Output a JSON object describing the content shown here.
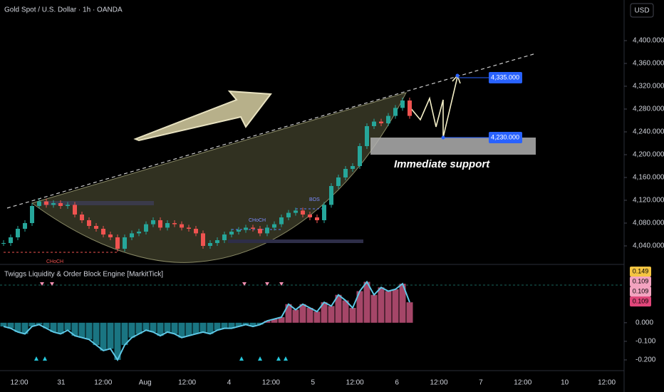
{
  "header": {
    "symbol": "Gold Spot / U.S. Dollar · 1h · OANDA",
    "currency": "USD"
  },
  "chart_data": [
    {
      "type": "candlestick",
      "values": [
        4045,
        4055,
        4070,
        4080,
        4110,
        4118,
        4112,
        4115,
        4110,
        4112,
        4095,
        4085,
        4075,
        4070,
        4060,
        4055,
        4035,
        4055,
        4062,
        4065,
        4078,
        4085,
        4072,
        4080,
        4078,
        4072,
        4070,
        4062,
        4040,
        4045,
        4050,
        4060,
        4065,
        4068,
        4072,
        4070,
        4062,
        4072,
        4078,
        4090,
        4098,
        4102,
        4095,
        4090,
        4085,
        4112,
        4145,
        4160,
        4175,
        4180,
        4215,
        4250,
        4258,
        4255,
        4268,
        4282,
        4295,
        4268
      ],
      "colors": {
        "up": "#26a69a",
        "down": "#ef5350"
      },
      "ylim": [
        4008.75,
        4471.25
      ],
      "yticks": [
        {
          "value": 4400,
          "label": "4,400.000"
        },
        {
          "value": 4360,
          "label": "4,360.000"
        },
        {
          "value": 4320,
          "label": "4,320.000"
        },
        {
          "value": 4280,
          "label": "4,280.000"
        },
        {
          "value": 4240,
          "label": "4,240.000"
        },
        {
          "value": 4200,
          "label": "4,200.000"
        },
        {
          "value": 4160,
          "label": "4,160.000"
        },
        {
          "value": 4120,
          "label": "4,120.000"
        },
        {
          "value": 4080,
          "label": "4,080.000"
        },
        {
          "value": 4040,
          "label": "4,040.000"
        }
      ],
      "price_labels": [
        {
          "value": 4335,
          "label": "4,335.000"
        },
        {
          "value": 4230,
          "label": "4,230.000"
        }
      ],
      "annotations": {
        "support": "Immediate support",
        "choch_1": "CHoCH",
        "choch_2": "CHoCH",
        "bos": "BOS"
      }
    },
    {
      "type": "bar",
      "title": "Twiggs Liquidity & Order Block Engine [MarkitTick]",
      "values": [
        -0.02,
        -0.03,
        -0.05,
        -0.06,
        -0.02,
        -0.01,
        -0.03,
        -0.05,
        -0.06,
        -0.04,
        -0.07,
        -0.08,
        -0.09,
        -0.12,
        -0.15,
        -0.14,
        -0.2,
        -0.12,
        -0.08,
        -0.06,
        -0.04,
        -0.05,
        -0.07,
        -0.05,
        -0.06,
        -0.08,
        -0.07,
        -0.06,
        -0.05,
        -0.06,
        -0.04,
        -0.03,
        -0.03,
        -0.02,
        -0.01,
        -0.02,
        -0.01,
        0.01,
        0.02,
        0.03,
        0.1,
        0.07,
        0.1,
        0.08,
        0.06,
        0.11,
        0.09,
        0.15,
        0.12,
        0.08,
        0.17,
        0.22,
        0.15,
        0.19,
        0.17,
        0.18,
        0.21,
        0.11
      ],
      "colors": {
        "up": "#c2527a",
        "down": "#1f8a99",
        "line": "#5ec8e6"
      },
      "ylim": [
        -0.25,
        0.31
      ],
      "yticks": [
        {
          "value": 0,
          "label": "0.000"
        },
        {
          "value": -0.1,
          "label": "-0.100"
        },
        {
          "value": -0.2,
          "label": "-0.200"
        }
      ],
      "last_values": [
        {
          "value": 0.149,
          "color": "#f5c542"
        },
        {
          "value": 0.109,
          "color": "#f3a3c0"
        },
        {
          "value": 0.109,
          "color": "#f3a3c0"
        },
        {
          "value": 0.109,
          "color": "#e0467a"
        }
      ]
    }
  ],
  "time_axis": [
    "12:00",
    "31",
    "12:00",
    "Aug",
    "12:00",
    "4",
    "12:00",
    "5",
    "12:00",
    "6",
    "12:00",
    "7",
    "12:00",
    "10",
    "12:00"
  ]
}
